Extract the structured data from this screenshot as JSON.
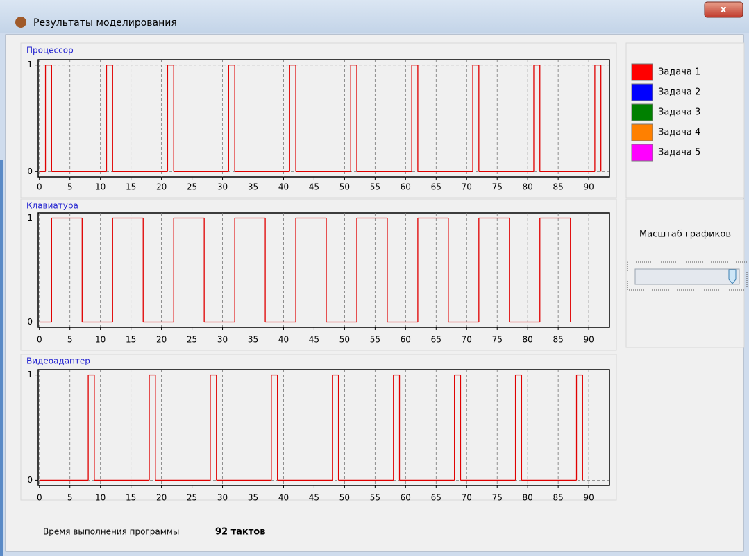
{
  "window": {
    "title": "Результаты моделирования"
  },
  "chart_data": [
    {
      "type": "line",
      "step": true,
      "title": "Процессор",
      "color": "#e00000",
      "x": [
        0,
        1,
        2,
        11,
        12,
        21,
        22,
        31,
        32,
        41,
        42,
        51,
        52,
        61,
        62,
        71,
        72,
        81,
        82,
        91,
        92
      ],
      "values": [
        0,
        1,
        0,
        1,
        0,
        1,
        0,
        1,
        0,
        1,
        0,
        1,
        0,
        1,
        0,
        1,
        0,
        1,
        0,
        1,
        0
      ],
      "xlim": [
        -0.2,
        93.4
      ],
      "ylim": [
        -0.05,
        1.05
      ],
      "xticks": [
        0,
        5,
        10,
        15,
        20,
        25,
        30,
        35,
        40,
        45,
        50,
        55,
        60,
        65,
        70,
        75,
        80,
        85,
        90
      ],
      "yticks": [
        0,
        1
      ],
      "grid": true
    },
    {
      "type": "line",
      "step": true,
      "title": "Клавиатура",
      "color": "#e00000",
      "x": [
        0,
        2,
        7,
        12,
        17,
        22,
        27,
        32,
        37,
        42,
        47,
        52,
        57,
        62,
        67,
        72,
        77,
        82,
        87
      ],
      "values": [
        0,
        1,
        0,
        1,
        0,
        1,
        0,
        1,
        0,
        1,
        0,
        1,
        0,
        1,
        0,
        1,
        0,
        1,
        0
      ],
      "xlim": [
        -0.2,
        93.4
      ],
      "ylim": [
        -0.05,
        1.05
      ],
      "xticks": [
        0,
        5,
        10,
        15,
        20,
        25,
        30,
        35,
        40,
        45,
        50,
        55,
        60,
        65,
        70,
        75,
        80,
        85,
        90
      ],
      "yticks": [
        0,
        1
      ],
      "grid": true
    },
    {
      "type": "line",
      "step": true,
      "title": "Видеоадаптер",
      "color": "#e00000",
      "x": [
        0,
        8,
        9,
        18,
        19,
        28,
        29,
        38,
        39,
        48,
        49,
        58,
        59,
        68,
        69,
        78,
        79,
        88,
        89
      ],
      "values": [
        0,
        1,
        0,
        1,
        0,
        1,
        0,
        1,
        0,
        1,
        0,
        1,
        0,
        1,
        0,
        1,
        0,
        1,
        0
      ],
      "xlim": [
        -0.2,
        93.4
      ],
      "ylim": [
        -0.05,
        1.05
      ],
      "xticks": [
        0,
        5,
        10,
        15,
        20,
        25,
        30,
        35,
        40,
        45,
        50,
        55,
        60,
        65,
        70,
        75,
        80,
        85,
        90
      ],
      "yticks": [
        0,
        1
      ],
      "grid": true
    }
  ],
  "legend": [
    {
      "label": "Задача 1",
      "color": "#ff0000"
    },
    {
      "label": "Задача 2",
      "color": "#0000ff"
    },
    {
      "label": "Задача 3",
      "color": "#008000"
    },
    {
      "label": "Задача 4",
      "color": "#ff8000"
    },
    {
      "label": "Задача 5",
      "color": "#ff00ff"
    }
  ],
  "scale": {
    "label": "Масштаб графиков"
  },
  "footer": {
    "label": "Время выполнения программы",
    "value": "92 тактов"
  }
}
